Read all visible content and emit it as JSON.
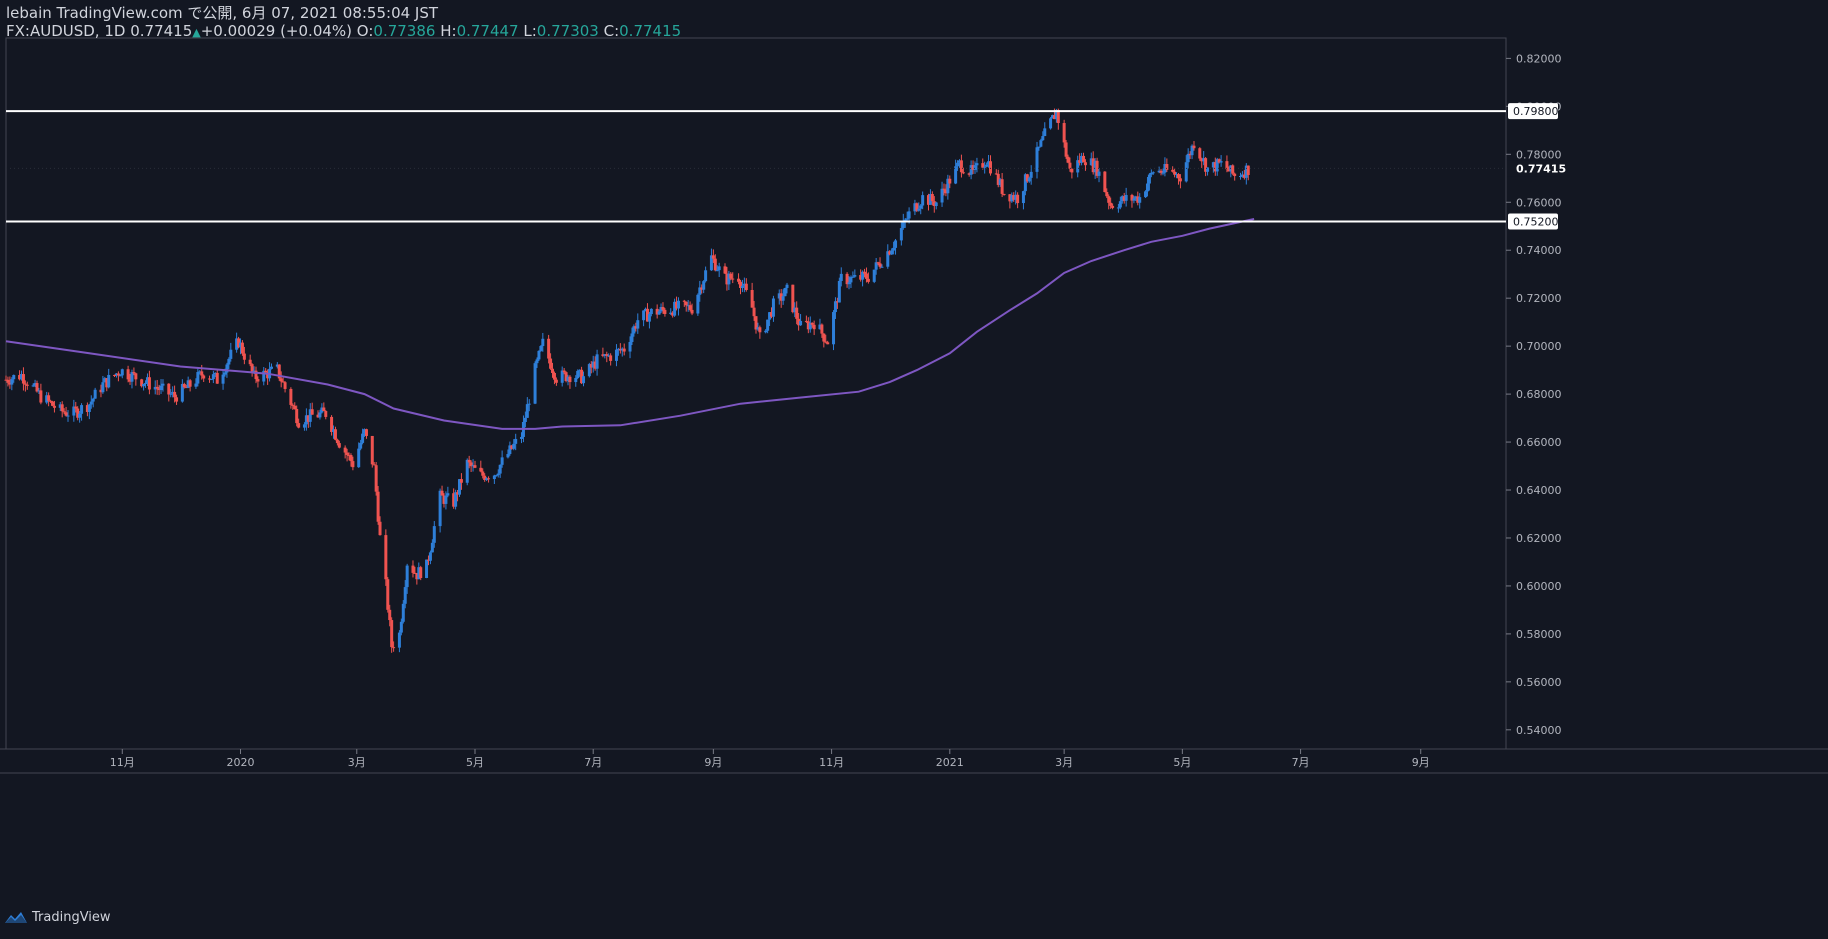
{
  "header": {
    "line1": "lebain TradingView.com で公開, 6月 07, 2021 08:55:04 JST",
    "symbol": "FX:AUDUSD, 1D",
    "last": "0.77415",
    "change": "+0.00029 (+0.04%)",
    "o_label": "O:",
    "o_val": "0.77386",
    "h_label": "H:",
    "h_val": "0.77447",
    "l_label": "L:",
    "l_val": "0.77303",
    "c_label": "C:",
    "c_val": "0.77415"
  },
  "footer": {
    "brand": "TradingView"
  },
  "colors": {
    "up": "#2e7fd9",
    "down": "#ef5350",
    "ma": "#7e57c2",
    "bg": "#131722",
    "line": "#ffffff"
  },
  "chart_data": {
    "type": "candlestick",
    "symbol": "FX:AUDUSD",
    "interval": "1D",
    "y_ticks": [
      "0.82000",
      "0.80000",
      "0.78000",
      "0.76000",
      "0.74000",
      "0.72000",
      "0.70000",
      "0.68000",
      "0.66000",
      "0.64000",
      "0.62000",
      "0.60000",
      "0.58000",
      "0.56000",
      "0.54000"
    ],
    "ylim": [
      0.532,
      0.8285
    ],
    "x_ticks": [
      {
        "label": "11月",
        "date": "2019-11-01"
      },
      {
        "label": "2020",
        "date": "2020-01-01"
      },
      {
        "label": "3月",
        "date": "2020-03-01"
      },
      {
        "label": "5月",
        "date": "2020-05-01"
      },
      {
        "label": "7月",
        "date": "2020-07-01"
      },
      {
        "label": "9月",
        "date": "2020-09-01"
      },
      {
        "label": "11月",
        "date": "2020-11-01"
      },
      {
        "label": "2021",
        "date": "2021-01-01"
      },
      {
        "label": "3月",
        "date": "2021-03-01"
      },
      {
        "label": "5月",
        "date": "2021-05-01"
      },
      {
        "label": "7月",
        "date": "2021-07-01"
      },
      {
        "label": "9月",
        "date": "2021-09-01"
      }
    ],
    "x_range": [
      "2019-09-02",
      "2021-10-15"
    ],
    "horizontal_lines": [
      {
        "price": 0.798,
        "label": "0.79800"
      },
      {
        "price": 0.752,
        "label": "0.75200"
      }
    ],
    "last_price": {
      "price": 0.77415,
      "label": "0.77415"
    },
    "moving_average": [
      [
        "2019-09-02",
        0.702
      ],
      [
        "2019-10-15",
        0.697
      ],
      [
        "2019-12-01",
        0.6915
      ],
      [
        "2020-01-15",
        0.6885
      ],
      [
        "2020-02-15",
        0.684
      ],
      [
        "2020-03-05",
        0.68
      ],
      [
        "2020-03-20",
        0.674
      ],
      [
        "2020-04-15",
        0.669
      ],
      [
        "2020-05-15",
        0.6655
      ],
      [
        "2020-06-01",
        0.6655
      ],
      [
        "2020-06-15",
        0.6665
      ],
      [
        "2020-07-15",
        0.667
      ],
      [
        "2020-08-15",
        0.671
      ],
      [
        "2020-09-15",
        0.676
      ],
      [
        "2020-10-15",
        0.6785
      ],
      [
        "2020-11-15",
        0.681
      ],
      [
        "2020-12-01",
        0.685
      ],
      [
        "2020-12-15",
        0.69
      ],
      [
        "2021-01-01",
        0.697
      ],
      [
        "2021-01-15",
        0.706
      ],
      [
        "2021-02-01",
        0.715
      ],
      [
        "2021-02-15",
        0.722
      ],
      [
        "2021-03-01",
        0.7305
      ],
      [
        "2021-03-15",
        0.7355
      ],
      [
        "2021-04-01",
        0.74
      ],
      [
        "2021-04-15",
        0.7435
      ],
      [
        "2021-05-01",
        0.746
      ],
      [
        "2021-05-15",
        0.749
      ],
      [
        "2021-06-07",
        0.753
      ]
    ],
    "closes": [
      [
        "2019-09-02",
        0.686
      ],
      [
        "2019-09-10",
        0.688
      ],
      [
        "2019-09-20",
        0.679
      ],
      [
        "2019-09-30",
        0.673
      ],
      [
        "2019-10-07",
        0.672
      ],
      [
        "2019-10-15",
        0.676
      ],
      [
        "2019-10-22",
        0.684
      ],
      [
        "2019-10-31",
        0.69
      ],
      [
        "2019-11-08",
        0.687
      ],
      [
        "2019-11-18",
        0.683
      ],
      [
        "2019-11-28",
        0.679
      ],
      [
        "2019-12-05",
        0.683
      ],
      [
        "2019-12-13",
        0.689
      ],
      [
        "2019-12-20",
        0.686
      ],
      [
        "2019-12-31",
        0.702
      ],
      [
        "2020-01-08",
        0.687
      ],
      [
        "2020-01-20",
        0.69
      ],
      [
        "2020-01-31",
        0.669
      ],
      [
        "2020-02-07",
        0.671
      ],
      [
        "2020-02-14",
        0.672
      ],
      [
        "2020-02-21",
        0.66
      ],
      [
        "2020-02-28",
        0.651
      ],
      [
        "2020-03-05",
        0.664
      ],
      [
        "2020-03-10",
        0.649
      ],
      [
        "2020-03-13",
        0.62
      ],
      [
        "2020-03-16",
        0.6
      ],
      [
        "2020-03-19",
        0.575
      ],
      [
        "2020-03-23",
        0.58
      ],
      [
        "2020-03-27",
        0.61
      ],
      [
        "2020-04-01",
        0.605
      ],
      [
        "2020-04-06",
        0.608
      ],
      [
        "2020-04-13",
        0.637
      ],
      [
        "2020-04-20",
        0.635
      ],
      [
        "2020-04-27",
        0.651
      ],
      [
        "2020-05-04",
        0.646
      ],
      [
        "2020-05-11",
        0.647
      ],
      [
        "2020-05-18",
        0.655
      ],
      [
        "2020-05-25",
        0.663
      ],
      [
        "2020-06-01",
        0.69
      ],
      [
        "2020-06-05",
        0.701
      ],
      [
        "2020-06-12",
        0.687
      ],
      [
        "2020-06-19",
        0.688
      ],
      [
        "2020-06-26",
        0.687
      ],
      [
        "2020-07-03",
        0.694
      ],
      [
        "2020-07-10",
        0.696
      ],
      [
        "2020-07-17",
        0.699
      ],
      [
        "2020-07-24",
        0.711
      ],
      [
        "2020-07-31",
        0.714
      ],
      [
        "2020-08-07",
        0.715
      ],
      [
        "2020-08-14",
        0.716
      ],
      [
        "2020-08-21",
        0.716
      ],
      [
        "2020-08-31",
        0.737
      ],
      [
        "2020-09-07",
        0.728
      ],
      [
        "2020-09-14",
        0.729
      ],
      [
        "2020-09-21",
        0.716
      ],
      [
        "2020-09-25",
        0.703
      ],
      [
        "2020-10-02",
        0.717
      ],
      [
        "2020-10-09",
        0.723
      ],
      [
        "2020-10-16",
        0.708
      ],
      [
        "2020-10-23",
        0.71
      ],
      [
        "2020-10-30",
        0.702
      ],
      [
        "2020-11-06",
        0.728
      ],
      [
        "2020-11-13",
        0.728
      ],
      [
        "2020-11-20",
        0.729
      ],
      [
        "2020-11-27",
        0.736
      ],
      [
        "2020-12-04",
        0.744
      ],
      [
        "2020-12-11",
        0.755
      ],
      [
        "2020-12-18",
        0.762
      ],
      [
        "2020-12-25",
        0.76
      ],
      [
        "2021-01-06",
        0.776
      ],
      [
        "2021-01-13",
        0.772
      ],
      [
        "2021-01-20",
        0.778
      ],
      [
        "2021-01-29",
        0.764
      ],
      [
        "2021-02-05",
        0.762
      ],
      [
        "2021-02-12",
        0.774
      ],
      [
        "2021-02-19",
        0.788
      ],
      [
        "2021-02-25",
        0.798
      ],
      [
        "2021-03-04",
        0.773
      ],
      [
        "2021-03-11",
        0.779
      ],
      [
        "2021-03-18",
        0.774
      ],
      [
        "2021-03-25",
        0.759
      ],
      [
        "2021-04-01",
        0.761
      ],
      [
        "2021-04-09",
        0.762
      ],
      [
        "2021-04-16",
        0.773
      ],
      [
        "2021-04-23",
        0.773
      ],
      [
        "2021-04-30",
        0.771
      ],
      [
        "2021-05-07",
        0.785
      ],
      [
        "2021-05-14",
        0.774
      ],
      [
        "2021-05-21",
        0.776
      ],
      [
        "2021-05-28",
        0.771
      ],
      [
        "2021-06-04",
        0.774
      ]
    ]
  }
}
